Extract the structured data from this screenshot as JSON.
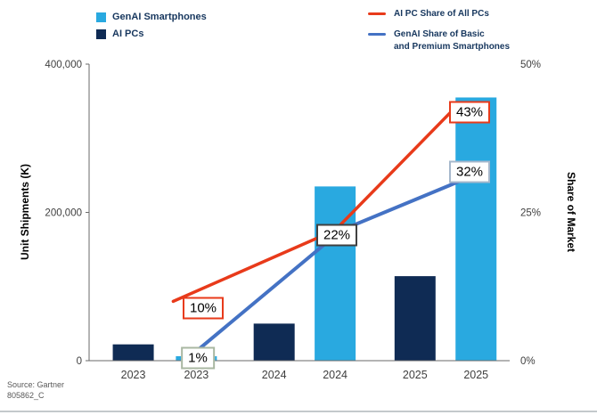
{
  "legend_bars": [
    {
      "label": "GenAI Smartphones",
      "color": "#29A9E0"
    },
    {
      "label": "AI PCs",
      "color": "#0F2B54"
    }
  ],
  "legend_lines": [
    {
      "label_lines": [
        "AI PC Share of All PCs"
      ],
      "color": "#E83A1A"
    },
    {
      "label_lines": [
        "GenAI Share of Basic",
        "and Premium Smartphones"
      ],
      "color": "#4472C4"
    }
  ],
  "left_axis": {
    "title": "Unit Shipments (K)",
    "ticks": [
      {
        "label": "0",
        "value": 0
      },
      {
        "label": "200,000",
        "value": 200000
      },
      {
        "label": "400,000",
        "value": 400000
      }
    ]
  },
  "right_axis": {
    "title": "Share of Market",
    "ticks": [
      {
        "label": "0%",
        "value": 0
      },
      {
        "label": "25%",
        "value": 25
      },
      {
        "label": "50%",
        "value": 50
      }
    ]
  },
  "source_line1": "Source: Gartner",
  "source_line2": "805862_C",
  "chart_data": {
    "type": "bar+line",
    "categories": [
      "2023",
      "2023",
      "2024",
      "2024",
      "2025",
      "2025"
    ],
    "ylim_left": [
      0,
      400000
    ],
    "ylim_right": [
      0,
      50
    ],
    "ylabel_left": "Unit Shipments (K)",
    "ylabel_right": "Share of Market",
    "legend_position": "top",
    "grid": false,
    "bars": [
      {
        "slot": 0,
        "series": "AI PCs",
        "value": 22000,
        "color": "#0F2B54"
      },
      {
        "slot": 1,
        "series": "GenAI Smartphones",
        "value": 6000,
        "color": "#29A9E0"
      },
      {
        "slot": 2,
        "series": "AI PCs",
        "value": 50000,
        "color": "#0F2B54"
      },
      {
        "slot": 3,
        "series": "GenAI Smartphones",
        "value": 235000,
        "color": "#29A9E0"
      },
      {
        "slot": 4,
        "series": "AI PCs",
        "value": 114000,
        "color": "#0F2B54"
      },
      {
        "slot": 5,
        "series": "GenAI Smartphones",
        "value": 355000,
        "color": "#29A9E0"
      }
    ],
    "lines": [
      {
        "name": "AI PC Share of All PCs",
        "color": "#E83A1A",
        "width": 3.5,
        "points": [
          {
            "xf": 0.2,
            "pct": 10
          },
          {
            "xf": 0.585,
            "pct": 22
          },
          {
            "xf": 0.875,
            "pct": 43
          }
        ]
      },
      {
        "name": "GenAI Share of Basic and Premium Smartphones",
        "color": "#4472C4",
        "width": 4,
        "points": [
          {
            "xf": 0.245,
            "pct": 1
          },
          {
            "xf": 0.6,
            "pct": 22
          },
          {
            "xf": 0.94,
            "pct": 32
          }
        ]
      }
    ],
    "labels": [
      {
        "text": "10%",
        "x": 228,
        "y": 346,
        "border": "#E83A1A"
      },
      {
        "text": "1%",
        "x": 222,
        "y": 402,
        "border": "#A9B7A2"
      },
      {
        "text": "22%",
        "x": 378,
        "y": 264,
        "border": "#404040"
      },
      {
        "text": "43%",
        "x": 527,
        "y": 126,
        "border": "#E83A1A"
      },
      {
        "text": "32%",
        "x": 527,
        "y": 193,
        "border": "#A6B8CC"
      }
    ]
  }
}
